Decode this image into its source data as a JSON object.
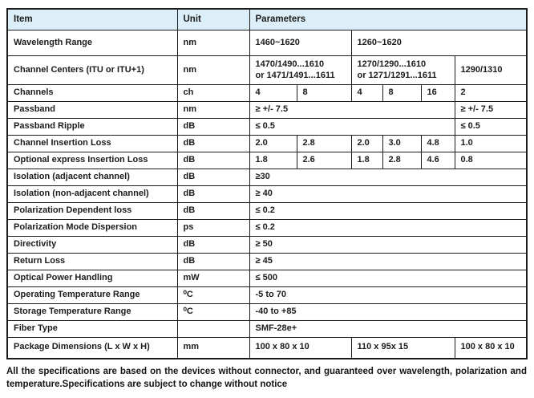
{
  "table": {
    "header": {
      "item": "Item",
      "unit": "Unit",
      "parameters": "Parameters"
    },
    "rows": [
      {
        "item": "Wavelength Range",
        "unit": "nm",
        "cells": [
          {
            "text": "1460~1620",
            "span": 2,
            "center": true
          },
          {
            "text": "1260~1620",
            "span": 4,
            "center": true
          }
        ]
      },
      {
        "item": "Channel Centers (ITU or ITU+1)",
        "unit": "nm",
        "cells": [
          {
            "text": "1470/1490...1610\nor 1471/1491...1611",
            "span": 2,
            "center": true
          },
          {
            "text": "1270/1290...1610\nor 1271/1291...1611",
            "span": 3,
            "center": true
          },
          {
            "text": "1290/1310",
            "span": 1,
            "center": true
          }
        ]
      },
      {
        "item": "Channels",
        "unit": "ch",
        "cells": [
          {
            "text": "4",
            "span": 1
          },
          {
            "text": "8",
            "span": 1
          },
          {
            "text": "4",
            "span": 1
          },
          {
            "text": "8",
            "span": 1
          },
          {
            "text": "16",
            "span": 1
          },
          {
            "text": "2",
            "span": 1
          }
        ]
      },
      {
        "item": "Passband",
        "unit": "nm",
        "cells": [
          {
            "text": "≥ +/- 7.5",
            "span": 5
          },
          {
            "text": "≥ +/- 7.5",
            "span": 1
          }
        ]
      },
      {
        "item": "Passband Ripple",
        "unit": "dB",
        "cells": [
          {
            "text": "≤ 0.5",
            "span": 5
          },
          {
            "text": "≤ 0.5",
            "span": 1
          }
        ]
      },
      {
        "item": "Channel Insertion Loss",
        "unit": "dB",
        "cells": [
          {
            "text": "2.0",
            "span": 1
          },
          {
            "text": "2.8",
            "span": 1
          },
          {
            "text": "2.0",
            "span": 1
          },
          {
            "text": "3.0",
            "span": 1
          },
          {
            "text": "4.8",
            "span": 1
          },
          {
            "text": "1.0",
            "span": 1
          }
        ]
      },
      {
        "item": "Optional express Insertion Loss",
        "unit": "dB",
        "cells": [
          {
            "text": "1.8",
            "span": 1
          },
          {
            "text": "2.6",
            "span": 1
          },
          {
            "text": "1.8",
            "span": 1
          },
          {
            "text": "2.8",
            "span": 1
          },
          {
            "text": "4.6",
            "span": 1
          },
          {
            "text": "0.8",
            "span": 1
          }
        ]
      },
      {
        "item": "Isolation (adjacent channel)",
        "unit": "dB",
        "cells": [
          {
            "text": "≥30",
            "span": 6
          }
        ]
      },
      {
        "item": "Isolation (non-adjacent channel)",
        "unit": "dB",
        "cells": [
          {
            "text": "≥ 40",
            "span": 6
          }
        ]
      },
      {
        "item": "Polarization Dependent loss",
        "unit": "dB",
        "cells": [
          {
            "text": "≤ 0.2",
            "span": 6
          }
        ]
      },
      {
        "item": "Polarization Mode Dispersion",
        "unit": "ps",
        "cells": [
          {
            "text": "≤ 0.2",
            "span": 6
          }
        ]
      },
      {
        "item": "Directivity",
        "unit": "dB",
        "cells": [
          {
            "text": "≥ 50",
            "span": 6
          }
        ]
      },
      {
        "item": "Return Loss",
        "unit": "dB",
        "cells": [
          {
            "text": "≥ 45",
            "span": 6
          }
        ]
      },
      {
        "item": "Optical Power Handling",
        "unit": "mW",
        "cells": [
          {
            "text": "≤ 500",
            "span": 6
          }
        ]
      },
      {
        "item": "Operating Temperature Range",
        "unit": "⁰C",
        "cells": [
          {
            "text": "-5 to 70",
            "span": 6
          }
        ]
      },
      {
        "item": "Storage Temperature Range",
        "unit": "⁰C",
        "cells": [
          {
            "text": "-40 to +85",
            "span": 6
          }
        ]
      },
      {
        "item": "Fiber Type",
        "unit": "",
        "cells": [
          {
            "text": "SMF-28e+",
            "span": 6
          }
        ]
      },
      {
        "item": "Package Dimensions (L x W x H)",
        "unit": "mm",
        "cells": [
          {
            "text": "100 x 80 x 10",
            "span": 2
          },
          {
            "text": "110 x 95x 15",
            "span": 3
          },
          {
            "text": "100 x 80 x 10",
            "span": 1
          }
        ]
      }
    ]
  },
  "footer": {
    "note": "All the specifications are based on the devices without connector, and guaranteed over wavelength, polarization and temperature.Specifications are subject to change without notice"
  },
  "colors": {
    "header_bg": "#dceef8",
    "border": "#1c1c1c",
    "text": "#1c1c1c"
  }
}
